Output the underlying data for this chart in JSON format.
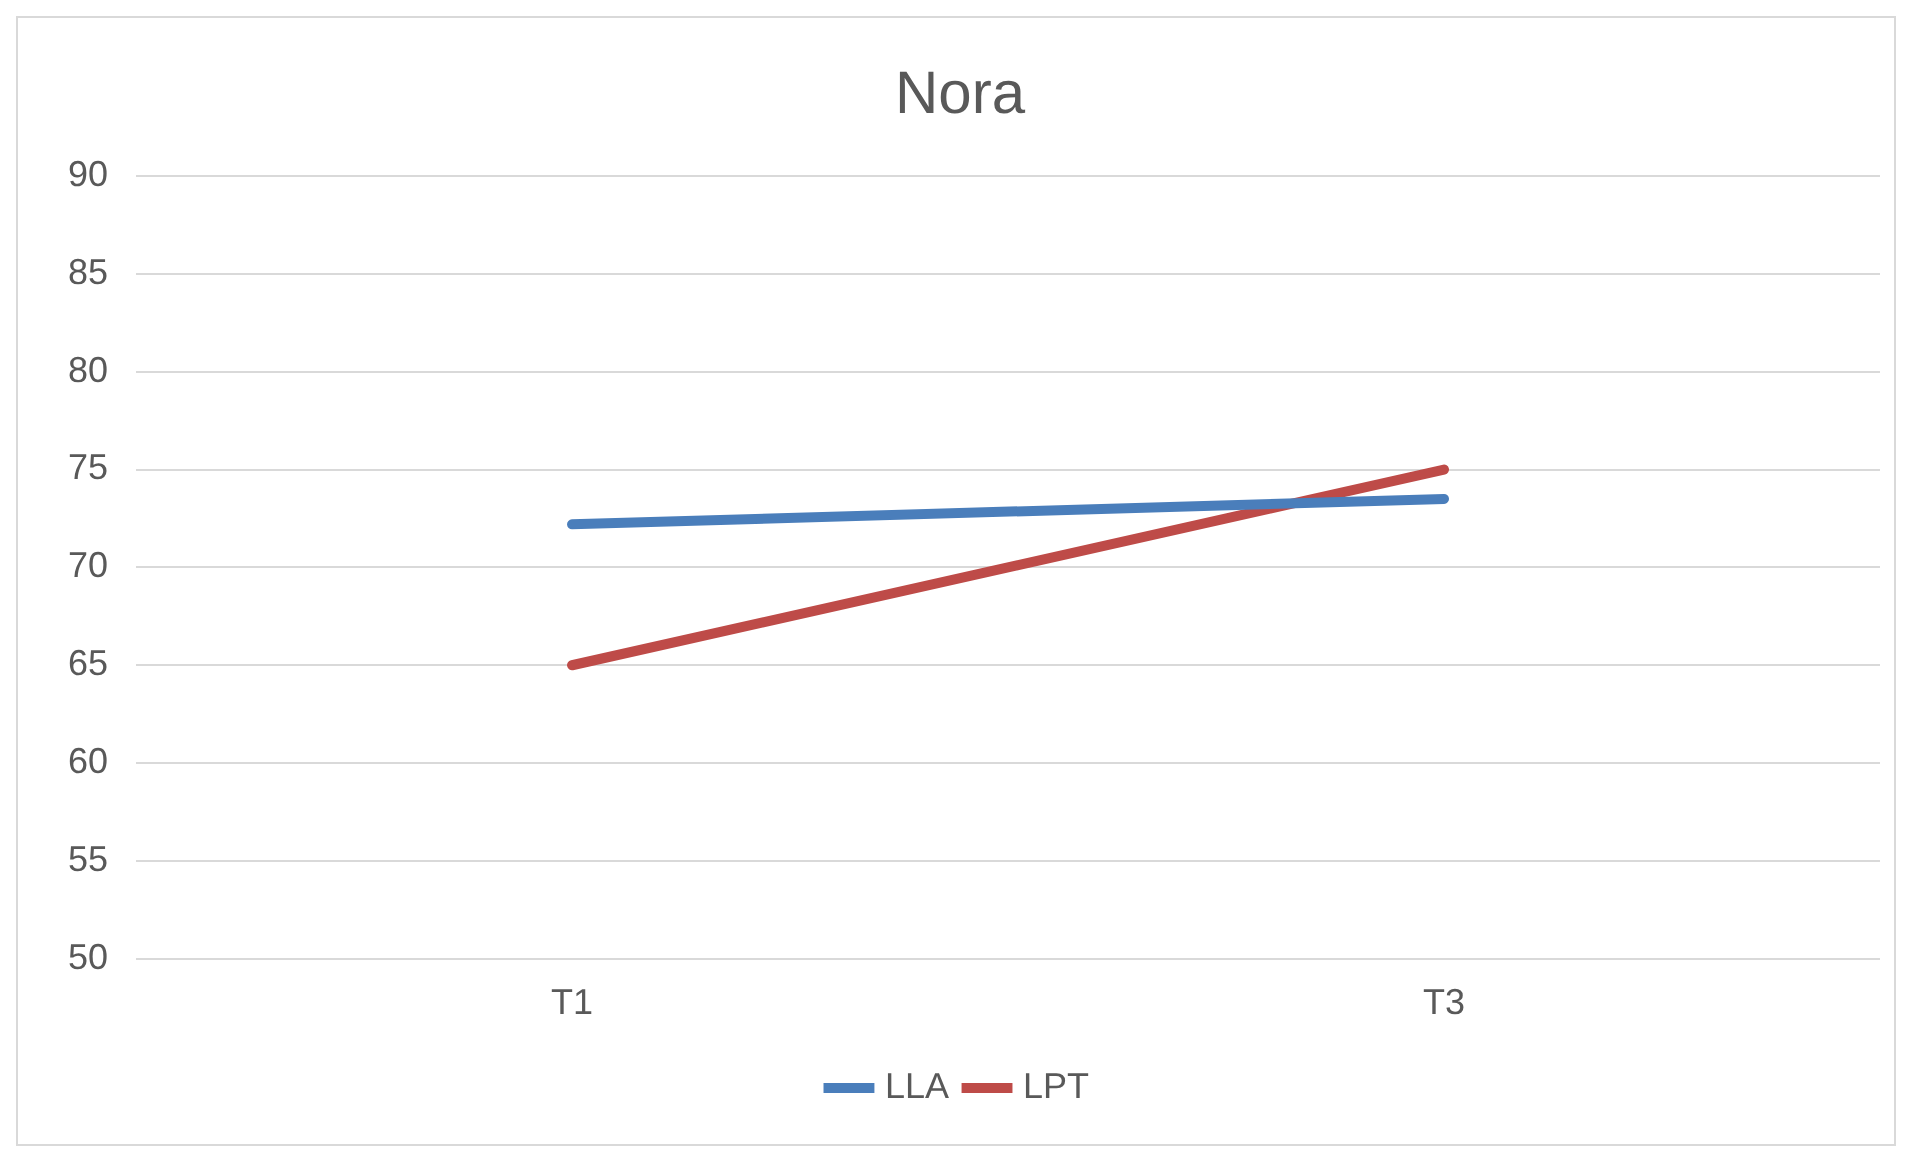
{
  "chart_data": {
    "type": "line",
    "title": "Nora",
    "categories": [
      "T1",
      "T3"
    ],
    "series": [
      {
        "name": "LLA",
        "color": "#4a7ebb",
        "values": [
          72.2,
          73.5
        ]
      },
      {
        "name": "LPT",
        "color": "#be4b48",
        "values": [
          65,
          75
        ]
      }
    ],
    "ylim": [
      50,
      90
    ],
    "yticks": [
      50,
      55,
      60,
      65,
      70,
      75,
      80,
      85,
      90
    ],
    "grid": "y",
    "legend": "bottom",
    "marker": "none"
  }
}
